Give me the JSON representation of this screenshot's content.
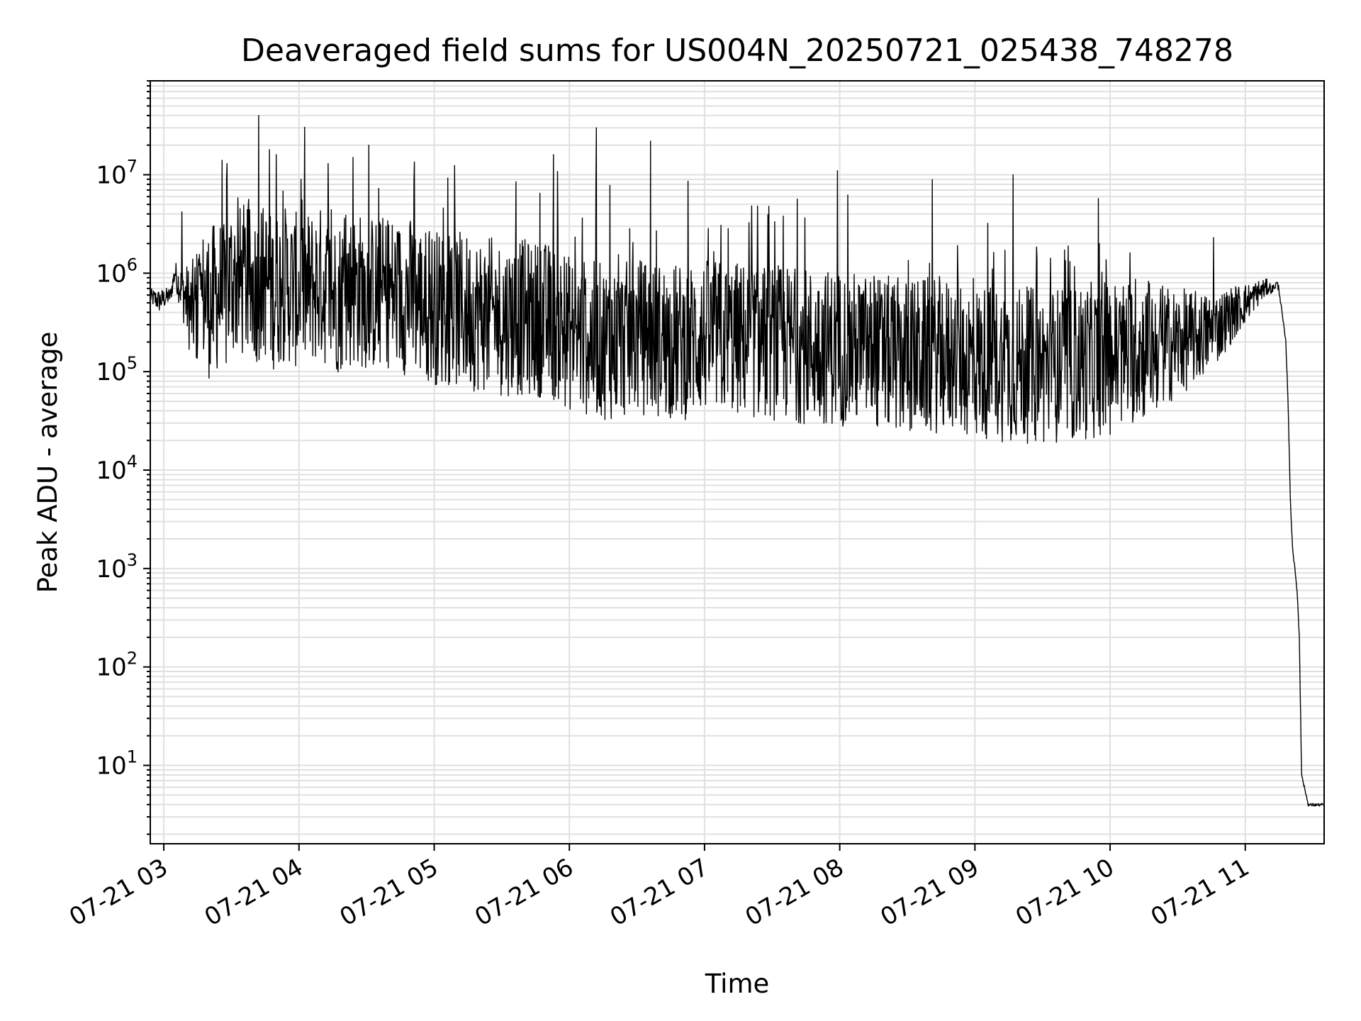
{
  "chart_data": {
    "type": "line",
    "title": "Deaveraged field sums for US004N_20250721_025438_748278",
    "xlabel": "Time",
    "ylabel": "Peak ADU - average",
    "x_range": [
      "2025-07-21 02:54",
      "2025-07-21 11:35"
    ],
    "ylim": [
      1.6,
      90000000
    ],
    "y_scale": "log",
    "grid": true,
    "grid_color": "#e0e0e0",
    "line_color": "#000000",
    "x_tick_labels": [
      "07-21 03",
      "07-21 04",
      "07-21 05",
      "07-21 06",
      "07-21 07",
      "07-21 08",
      "07-21 09",
      "07-21 10",
      "07-21 11"
    ],
    "x_ticks": [
      "2025-07-21 03:00",
      "2025-07-21 04:00",
      "2025-07-21 05:00",
      "2025-07-21 06:00",
      "2025-07-21 07:00",
      "2025-07-21 08:00",
      "2025-07-21 09:00",
      "2025-07-21 10:00",
      "2025-07-21 11:00"
    ],
    "y_tick_labels": [
      {
        "base": "10",
        "exp": "1",
        "value": 10
      },
      {
        "base": "10",
        "exp": "2",
        "value": 100
      },
      {
        "base": "10",
        "exp": "3",
        "value": 1000
      },
      {
        "base": "10",
        "exp": "4",
        "value": 10000
      },
      {
        "base": "10",
        "exp": "5",
        "value": 100000
      },
      {
        "base": "10",
        "exp": "6",
        "value": 1000000
      },
      {
        "base": "10",
        "exp": "7",
        "value": 10000000
      }
    ],
    "series": [
      {
        "x": [
          "2025-07-21 02:54",
          "2025-07-21 02:58",
          "2025-07-21 03:03",
          "2025-07-21 03:05",
          "2025-07-21 03:06",
          "2025-07-21 03:09",
          "2025-07-21 03:12",
          "2025-07-21 03:15",
          "2025-07-21 03:18",
          "2025-07-21 03:21",
          "2025-07-21 03:24",
          "2025-07-21 03:27",
          "2025-07-21 03:30",
          "2025-07-21 03:33",
          "2025-07-21 03:36",
          "2025-07-21 03:39",
          "2025-07-21 03:42",
          "2025-07-21 03:45",
          "2025-07-21 03:48",
          "2025-07-21 03:51",
          "2025-07-21 03:54",
          "2025-07-21 03:57",
          "2025-07-21 04:00",
          "2025-07-21 04:05",
          "2025-07-21 04:10",
          "2025-07-21 04:15",
          "2025-07-21 04:20",
          "2025-07-21 04:25",
          "2025-07-21 04:30",
          "2025-07-21 04:35",
          "2025-07-21 04:40",
          "2025-07-21 04:45",
          "2025-07-21 04:50",
          "2025-07-21 04:55",
          "2025-07-21 05:00",
          "2025-07-21 05:10",
          "2025-07-21 05:20",
          "2025-07-21 05:30",
          "2025-07-21 05:40",
          "2025-07-21 05:50",
          "2025-07-21 06:00",
          "2025-07-21 06:10",
          "2025-07-21 06:20",
          "2025-07-21 06:30",
          "2025-07-21 06:40",
          "2025-07-21 06:50",
          "2025-07-21 07:00",
          "2025-07-21 07:15",
          "2025-07-21 07:30",
          "2025-07-21 07:45",
          "2025-07-21 08:00",
          "2025-07-21 08:15",
          "2025-07-21 08:30",
          "2025-07-21 08:45",
          "2025-07-21 09:00",
          "2025-07-21 09:15",
          "2025-07-21 09:30",
          "2025-07-21 09:45",
          "2025-07-21 10:00",
          "2025-07-21 10:15",
          "2025-07-21 10:30",
          "2025-07-21 10:45",
          "2025-07-21 10:55",
          "2025-07-21 11:03",
          "2025-07-21 11:07",
          "2025-07-21 11:10",
          "2025-07-21 11:12",
          "2025-07-21 11:14",
          "2025-07-21 11:15",
          "2025-07-21 11:16",
          "2025-07-21 11:18",
          "2025-07-21 11:19",
          "2025-07-21 11:20",
          "2025-07-21 11:21",
          "2025-07-21 11:22",
          "2025-07-21 11:23",
          "2025-07-21 11:24",
          "2025-07-21 11:25",
          "2025-07-21 11:28",
          "2025-07-21 11:31",
          "2025-07-21 11:35"
        ],
        "center": [
          600000,
          550000,
          620000,
          1100000,
          900000,
          700000,
          500000,
          600000,
          800000,
          650000,
          900000,
          700000,
          1300000,
          1100000,
          1200000,
          1000000,
          1100000,
          1200000,
          900000,
          1000000,
          1100000,
          1000000,
          900000,
          1000000,
          1100000,
          800000,
          900000,
          1000000,
          900000,
          850000,
          950000,
          800000,
          850000,
          700000,
          650000,
          600000,
          550000,
          500000,
          500000,
          480000,
          350000,
          300000,
          280000,
          320000,
          300000,
          280000,
          320000,
          300000,
          280000,
          260000,
          250000,
          220000,
          200000,
          210000,
          180000,
          170000,
          160000,
          170000,
          200000,
          230000,
          250000,
          300000,
          450000,
          600000,
          700000,
          750000,
          700000,
          800000,
          700000,
          450000,
          200000,
          50000,
          5000,
          1600,
          1000,
          600,
          200,
          8,
          4,
          4,
          4
        ],
        "spread": [
          0.1,
          0.15,
          0.1,
          0.15,
          0.2,
          0.4,
          0.6,
          0.8,
          0.9,
          1.0,
          1.0,
          1.0,
          1.0,
          1.0,
          1.0,
          1.0,
          1.0,
          1.0,
          1.0,
          1.0,
          1.0,
          1.0,
          1.0,
          1.0,
          1.0,
          1.0,
          1.0,
          1.0,
          1.0,
          1.0,
          1.0,
          1.0,
          1.0,
          1.0,
          1.0,
          1.0,
          1.0,
          1.0,
          1.0,
          1.0,
          1.0,
          1.0,
          1.0,
          1.0,
          1.0,
          1.0,
          1.0,
          1.0,
          1.0,
          1.0,
          1.0,
          1.0,
          1.0,
          1.0,
          1.0,
          1.0,
          1.0,
          1.0,
          1.0,
          0.9,
          0.7,
          0.5,
          0.35,
          0.2,
          0.15,
          0.1,
          0.05,
          0.05,
          0.05,
          0.03,
          0.02,
          0.02,
          0.02,
          0.02,
          0.02,
          0.02,
          0.02,
          0.02,
          0.02,
          0.02,
          0.02
        ],
        "spikes": [
          {
            "x": "2025-07-21 03:08",
            "y": 4200000
          },
          {
            "x": "2025-07-21 03:28",
            "y": 13000000
          },
          {
            "x": "2025-07-21 03:42",
            "y": 40000000
          },
          {
            "x": "2025-07-21 03:47",
            "y": 18000000
          },
          {
            "x": "2025-07-21 03:50",
            "y": 16000000
          },
          {
            "x": "2025-07-21 04:01",
            "y": 9000000
          },
          {
            "x": "2025-07-21 04:13",
            "y": 13000000
          },
          {
            "x": "2025-07-21 04:24",
            "y": 15000000
          },
          {
            "x": "2025-07-21 04:31",
            "y": 20000000
          },
          {
            "x": "2025-07-21 04:51",
            "y": 8800000
          },
          {
            "x": "2025-07-21 05:04",
            "y": 4600000
          },
          {
            "x": "2025-07-21 05:47",
            "y": 6500000
          },
          {
            "x": "2025-07-21 05:53",
            "y": 16000000
          },
          {
            "x": "2025-07-21 06:12",
            "y": 30000000
          },
          {
            "x": "2025-07-21 06:18",
            "y": 7800000
          },
          {
            "x": "2025-07-21 06:36",
            "y": 22000000
          },
          {
            "x": "2025-07-21 07:35",
            "y": 3800000
          },
          {
            "x": "2025-07-21 07:59",
            "y": 11000000
          },
          {
            "x": "2025-07-21 09:17",
            "y": 10000000
          },
          {
            "x": "2025-07-21 10:46",
            "y": 2300000
          }
        ]
      }
    ]
  }
}
